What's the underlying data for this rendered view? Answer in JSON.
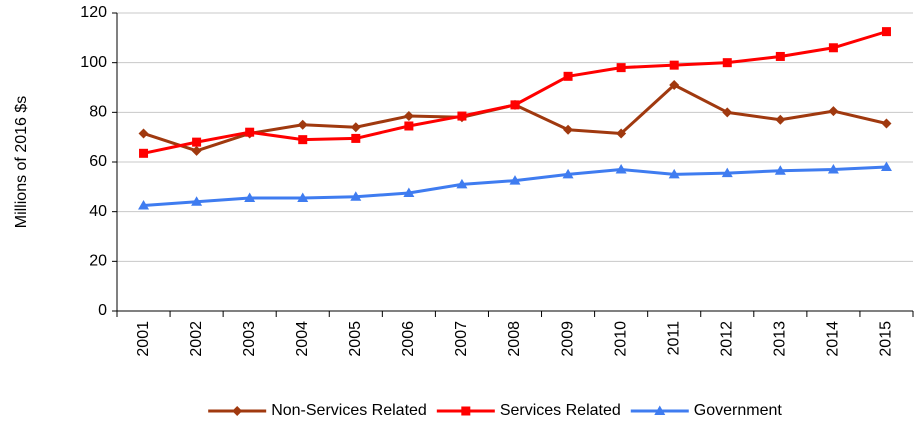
{
  "chart_data": {
    "type": "line",
    "y_label": "Millions of 2016 $s",
    "categories": [
      "2001",
      "2002",
      "2003",
      "2004",
      "2005",
      "2006",
      "2007",
      "2008",
      "2009",
      "2010",
      "2011",
      "2012",
      "2013",
      "2014",
      "2015"
    ],
    "series": [
      {
        "name": "Non-Services Related",
        "color": "#a0390f",
        "marker": "diamond",
        "values": [
          71.5,
          64.5,
          71.5,
          75,
          74,
          78.5,
          78,
          83,
          73,
          71.5,
          91,
          80,
          77,
          80.5,
          75.5
        ]
      },
      {
        "name": "Services Related",
        "color": "#ff0000",
        "marker": "square",
        "values": [
          63.5,
          68,
          72,
          69,
          69.5,
          74.5,
          78.5,
          83,
          94.5,
          98,
          99,
          100,
          102.5,
          106,
          112.5
        ]
      },
      {
        "name": "Government",
        "color": "#3f7cf0",
        "marker": "triangle",
        "values": [
          42.5,
          44,
          45.5,
          45.5,
          46,
          47.5,
          51,
          52.5,
          55,
          57,
          55,
          55.5,
          56.5,
          57,
          58
        ]
      }
    ],
    "ylim": [
      0,
      120
    ],
    "yticks": [
      0,
      20,
      40,
      60,
      80,
      100,
      120
    ],
    "grid": true,
    "legend": "bottom"
  }
}
